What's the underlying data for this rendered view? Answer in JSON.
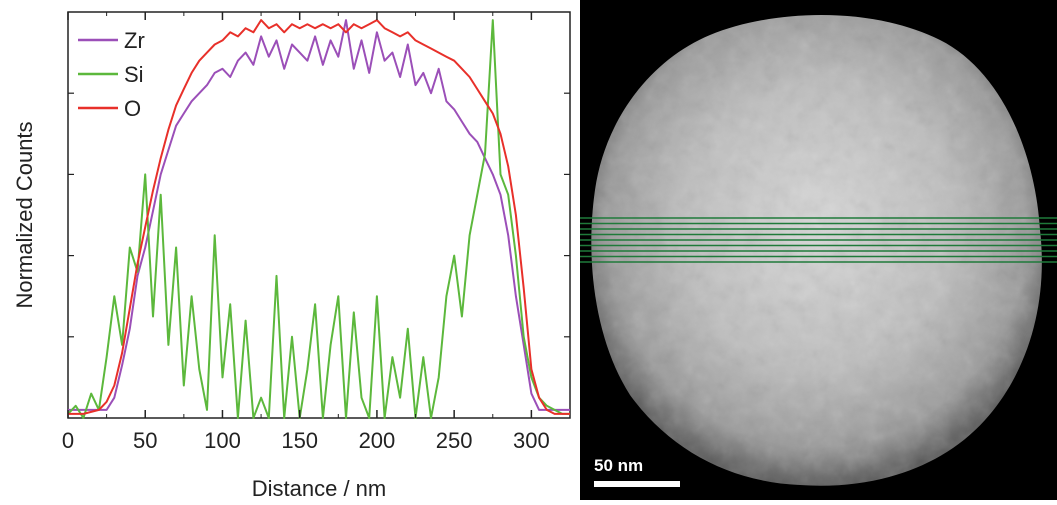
{
  "chart_data": {
    "type": "line",
    "xlabel": "Distance / nm",
    "ylabel": "Normalized Counts",
    "xlim": [
      0,
      325
    ],
    "ylim": [
      0,
      1.0
    ],
    "xticks": [
      0,
      50,
      100,
      150,
      200,
      250,
      300
    ],
    "grid": false,
    "legend_position": "top-left",
    "series": [
      {
        "name": "Zr",
        "color": "#9b4fb8",
        "x": [
          0,
          10,
          20,
          25,
          30,
          35,
          40,
          45,
          50,
          55,
          60,
          65,
          70,
          75,
          80,
          85,
          90,
          95,
          100,
          105,
          110,
          115,
          120,
          125,
          130,
          135,
          140,
          145,
          150,
          155,
          160,
          165,
          170,
          175,
          180,
          185,
          190,
          195,
          200,
          205,
          210,
          215,
          220,
          225,
          230,
          235,
          240,
          245,
          250,
          255,
          260,
          265,
          270,
          275,
          280,
          285,
          290,
          295,
          300,
          305,
          310,
          315,
          320,
          325
        ],
        "values": [
          0.02,
          0.02,
          0.02,
          0.02,
          0.05,
          0.13,
          0.22,
          0.35,
          0.42,
          0.51,
          0.6,
          0.66,
          0.72,
          0.75,
          0.78,
          0.8,
          0.82,
          0.85,
          0.86,
          0.84,
          0.88,
          0.9,
          0.87,
          0.94,
          0.89,
          0.93,
          0.86,
          0.92,
          0.9,
          0.88,
          0.94,
          0.87,
          0.93,
          0.89,
          0.98,
          0.86,
          0.93,
          0.85,
          0.95,
          0.88,
          0.9,
          0.84,
          0.92,
          0.82,
          0.85,
          0.8,
          0.86,
          0.78,
          0.76,
          0.73,
          0.7,
          0.68,
          0.64,
          0.6,
          0.55,
          0.45,
          0.3,
          0.18,
          0.06,
          0.02,
          0.02,
          0.02,
          0.02,
          0.02
        ]
      },
      {
        "name": "Si",
        "color": "#5cb83c",
        "x": [
          0,
          5,
          10,
          15,
          20,
          25,
          30,
          35,
          40,
          45,
          50,
          55,
          60,
          65,
          70,
          75,
          80,
          85,
          90,
          95,
          100,
          105,
          110,
          115,
          120,
          125,
          130,
          135,
          140,
          145,
          150,
          155,
          160,
          165,
          170,
          175,
          180,
          185,
          190,
          195,
          200,
          205,
          210,
          215,
          220,
          225,
          230,
          235,
          240,
          245,
          250,
          255,
          260,
          265,
          270,
          275,
          280,
          285,
          290,
          295,
          300,
          305,
          310,
          315,
          320,
          325
        ],
        "values": [
          0.01,
          0.03,
          0.0,
          0.06,
          0.02,
          0.15,
          0.3,
          0.18,
          0.42,
          0.36,
          0.6,
          0.25,
          0.55,
          0.18,
          0.42,
          0.08,
          0.3,
          0.12,
          0.02,
          0.45,
          0.1,
          0.28,
          0.0,
          0.24,
          0.0,
          0.05,
          0.0,
          0.35,
          0.0,
          0.2,
          0.0,
          0.12,
          0.28,
          0.0,
          0.18,
          0.3,
          0.0,
          0.26,
          0.05,
          0.0,
          0.3,
          0.0,
          0.15,
          0.05,
          0.22,
          0.0,
          0.15,
          0.0,
          0.1,
          0.3,
          0.4,
          0.25,
          0.45,
          0.55,
          0.65,
          0.98,
          0.6,
          0.55,
          0.4,
          0.2,
          0.1,
          0.05,
          0.03,
          0.02,
          0.01,
          0.01
        ]
      },
      {
        "name": "O",
        "color": "#e8302a",
        "x": [
          0,
          10,
          20,
          25,
          30,
          35,
          40,
          45,
          50,
          55,
          60,
          65,
          70,
          75,
          80,
          85,
          90,
          95,
          100,
          105,
          110,
          115,
          120,
          125,
          130,
          135,
          140,
          145,
          150,
          155,
          160,
          165,
          170,
          175,
          180,
          185,
          190,
          195,
          200,
          205,
          210,
          215,
          220,
          225,
          230,
          235,
          240,
          245,
          250,
          255,
          260,
          265,
          270,
          275,
          280,
          285,
          290,
          295,
          300,
          305,
          310,
          315,
          320,
          325
        ],
        "values": [
          0.01,
          0.01,
          0.02,
          0.04,
          0.08,
          0.16,
          0.27,
          0.38,
          0.47,
          0.56,
          0.64,
          0.71,
          0.77,
          0.81,
          0.85,
          0.88,
          0.9,
          0.92,
          0.93,
          0.95,
          0.94,
          0.96,
          0.95,
          0.98,
          0.96,
          0.97,
          0.95,
          0.97,
          0.96,
          0.97,
          0.96,
          0.97,
          0.96,
          0.97,
          0.95,
          0.97,
          0.96,
          0.97,
          0.98,
          0.96,
          0.95,
          0.94,
          0.95,
          0.93,
          0.92,
          0.91,
          0.9,
          0.89,
          0.88,
          0.86,
          0.84,
          0.81,
          0.78,
          0.75,
          0.7,
          0.62,
          0.5,
          0.32,
          0.12,
          0.05,
          0.02,
          0.01,
          0.01,
          0.01
        ]
      }
    ]
  },
  "image": {
    "scalebar_label": "50 nm",
    "line_color": "#1f7a3a"
  }
}
